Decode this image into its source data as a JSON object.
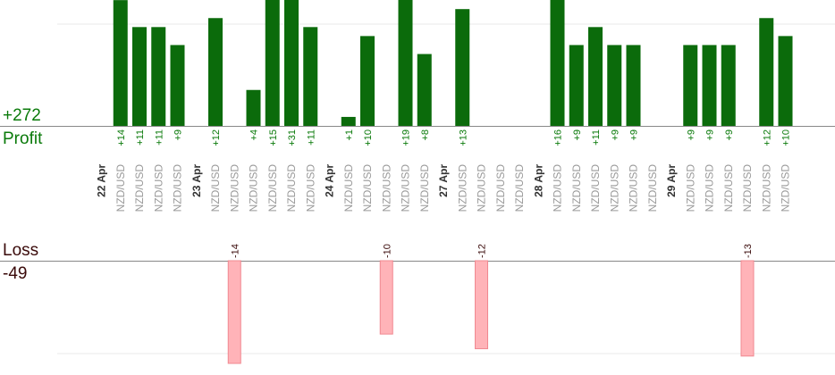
{
  "summary": {
    "profit_total": "+272",
    "profit_label": "Profit",
    "loss_label": "Loss",
    "loss_total": "-49"
  },
  "colors": {
    "profit_bar": "#0b6b0b",
    "profit_text": "#0a7a0a",
    "loss_bar": "#ffb3b8",
    "loss_bar_border": "#f08890",
    "loss_text": "#3a0a0a",
    "date_text": "#333333",
    "pair_text": "#999999",
    "axis": "#888888",
    "grid": "#e8e8e8"
  },
  "chart_data": {
    "type": "bar",
    "profit_axis_max": 16,
    "loss_axis_max": 14,
    "columns": [
      {
        "label": "22 Apr",
        "kind": "date"
      },
      {
        "label": "NZD/USD",
        "kind": "trade",
        "value": 14
      },
      {
        "label": "NZD/USD",
        "kind": "trade",
        "value": 11
      },
      {
        "label": "NZD/USD",
        "kind": "trade",
        "value": 11
      },
      {
        "label": "NZD/USD",
        "kind": "trade",
        "value": 9
      },
      {
        "label": "23 Apr",
        "kind": "date"
      },
      {
        "label": "NZD/USD",
        "kind": "trade",
        "value": 12
      },
      {
        "label": "NZD/USD",
        "kind": "trade",
        "value": -14
      },
      {
        "label": "NZD/USD",
        "kind": "trade",
        "value": 4
      },
      {
        "label": "NZD/USD",
        "kind": "trade",
        "value": 15
      },
      {
        "label": "NZD/USD",
        "kind": "trade",
        "value": 31
      },
      {
        "label": "NZD/USD",
        "kind": "trade",
        "value": 11
      },
      {
        "label": "24 Apr",
        "kind": "date"
      },
      {
        "label": "NZD/USD",
        "kind": "trade",
        "value": 1
      },
      {
        "label": "NZD/USD",
        "kind": "trade",
        "value": 10
      },
      {
        "label": "NZD/USD",
        "kind": "trade",
        "value": -10
      },
      {
        "label": "NZD/USD",
        "kind": "trade",
        "value": 19
      },
      {
        "label": "NZD/USD",
        "kind": "trade",
        "value": 8
      },
      {
        "label": "27 Apr",
        "kind": "date"
      },
      {
        "label": "NZD/USD",
        "kind": "trade",
        "value": 13
      },
      {
        "label": "NZD/USD",
        "kind": "trade",
        "value": -12
      },
      {
        "label": "NZD/USD",
        "kind": "trade",
        "value": 0
      },
      {
        "label": "NZD/USD",
        "kind": "trade",
        "value": 0
      },
      {
        "label": "28 Apr",
        "kind": "date"
      },
      {
        "label": "NZD/USD",
        "kind": "trade",
        "value": 16
      },
      {
        "label": "NZD/USD",
        "kind": "trade",
        "value": 9
      },
      {
        "label": "NZD/USD",
        "kind": "trade",
        "value": 11
      },
      {
        "label": "NZD/USD",
        "kind": "trade",
        "value": 9
      },
      {
        "label": "NZD/USD",
        "kind": "trade",
        "value": 9
      },
      {
        "label": "NZD/USD",
        "kind": "trade",
        "value": 0
      },
      {
        "label": "29 Apr",
        "kind": "date"
      },
      {
        "label": "NZD/USD",
        "kind": "trade",
        "value": 9
      },
      {
        "label": "NZD/USD",
        "kind": "trade",
        "value": 9
      },
      {
        "label": "NZD/USD",
        "kind": "trade",
        "value": 9
      },
      {
        "label": "NZD/USD",
        "kind": "trade",
        "value": -13
      },
      {
        "label": "NZD/USD",
        "kind": "trade",
        "value": 12
      },
      {
        "label": "NZD/USD",
        "kind": "trade",
        "value": 10
      }
    ]
  }
}
